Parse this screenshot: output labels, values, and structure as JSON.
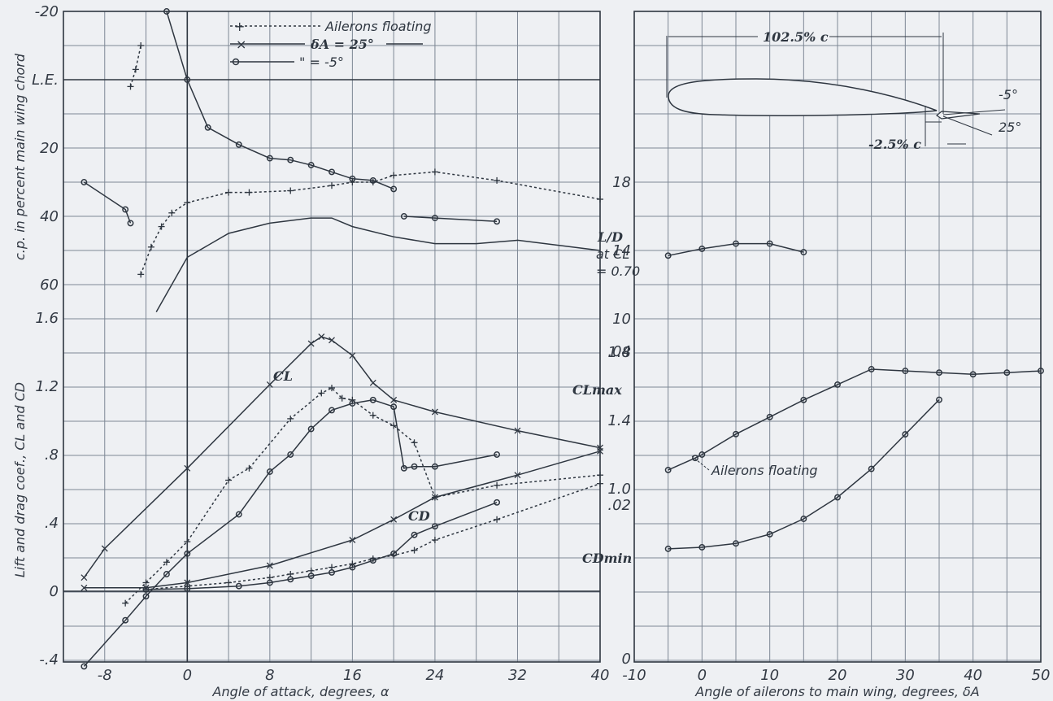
{
  "chart_data": [
    {
      "type": "line",
      "xlabel": "Angle of attack, degrees, α",
      "ylabel_upper": "c.p. in percent main wing chord",
      "ylabel_lower": "Lift and drag coef., CL and CD",
      "xlim": [
        -12,
        40
      ],
      "x_ticks": [
        "-8",
        "0",
        "8",
        "16",
        "24",
        "32",
        "40"
      ],
      "cp_ticks": [
        "-20",
        "L.E.",
        "20",
        "40",
        "60"
      ],
      "coef_ticks": [
        "1.6",
        "1.2",
        ".8",
        ".4",
        "0",
        "-.4"
      ],
      "legend": [
        {
          "key": "floating",
          "marker": "+",
          "style": "dotted",
          "label": "Ailerons floating"
        },
        {
          "key": "d25",
          "marker": "x",
          "style": "solid",
          "label": "δA = 25°"
        },
        {
          "key": "dm5",
          "marker": "o",
          "style": "solid",
          "label": "\" = -5°"
        }
      ],
      "annotations": {
        "cl": "CL",
        "cd": "CD"
      },
      "series": [
        {
          "name": "cp_floating",
          "axis": "cp",
          "marker": "+",
          "style": "dotted",
          "x": [
            -4.5,
            -3.5,
            -2.5,
            -1.5,
            0,
            4,
            6,
            10,
            14,
            16,
            18,
            20,
            24,
            30,
            40
          ],
          "y": [
            57,
            49,
            43,
            39,
            36,
            33,
            33,
            32.5,
            31,
            30,
            30,
            28,
            27,
            29.5,
            35
          ]
        },
        {
          "name": "cp_floating_upper",
          "axis": "cp",
          "marker": "+",
          "style": "dotted",
          "x": [
            -5.5,
            -5,
            -4.5
          ],
          "y": [
            2,
            -3,
            -10
          ]
        },
        {
          "name": "cp_dA_25",
          "axis": "cp",
          "marker": "none",
          "style": "solid",
          "x": [
            -3,
            0,
            4,
            8,
            12,
            14,
            16,
            20,
            24,
            28,
            32,
            40
          ],
          "y": [
            68,
            52,
            45,
            42,
            40.5,
            40.5,
            43,
            46,
            48,
            48,
            47,
            50
          ]
        },
        {
          "name": "cp_dA_m5",
          "axis": "cp",
          "marker": "o",
          "style": "solid",
          "x": [
            -2,
            0,
            2,
            5,
            8,
            10,
            12,
            14,
            16,
            18,
            20
          ],
          "y": [
            -20,
            0,
            14,
            19,
            23,
            23.5,
            25,
            27,
            29,
            29.5,
            32
          ]
        },
        {
          "name": "cp_dA_m5_stalled",
          "axis": "cp",
          "marker": "o",
          "style": "solid",
          "x": [
            21,
            24,
            30
          ],
          "y": [
            40,
            40.5,
            41.5
          ]
        },
        {
          "name": "cp_dA_m5_negative",
          "axis": "cp",
          "marker": "o",
          "style": "solid",
          "x": [
            -10,
            -6,
            -5.5
          ],
          "y": [
            30,
            38,
            42
          ]
        },
        {
          "name": "CL_floating",
          "axis": "coef",
          "marker": "+",
          "style": "dotted",
          "x": [
            -6,
            -4,
            -2,
            0,
            4,
            6,
            10,
            13,
            14,
            15,
            16,
            18,
            20,
            22,
            24,
            30,
            40
          ],
          "y": [
            -0.07,
            0.05,
            0.17,
            0.29,
            0.65,
            0.72,
            1.01,
            1.16,
            1.19,
            1.13,
            1.12,
            1.03,
            0.97,
            0.87,
            0.55,
            0.62,
            0.68
          ]
        },
        {
          "name": "CL_dA_25",
          "axis": "coef",
          "marker": "x",
          "style": "solid",
          "x": [
            -10,
            -8,
            0,
            8,
            12,
            13,
            14,
            16,
            18,
            20,
            24,
            32,
            40
          ],
          "y": [
            0.08,
            0.25,
            0.72,
            1.21,
            1.45,
            1.49,
            1.47,
            1.38,
            1.22,
            1.12,
            1.05,
            0.94,
            0.84
          ]
        },
        {
          "name": "CL_dA_m5",
          "axis": "coef",
          "marker": "o",
          "style": "solid",
          "x": [
            -10,
            -6,
            -4,
            -2,
            0,
            5,
            8,
            10,
            12,
            14,
            16,
            18,
            20,
            21,
            22,
            24,
            30
          ],
          "y": [
            -0.44,
            -0.17,
            -0.03,
            0.1,
            0.22,
            0.45,
            0.7,
            0.8,
            0.95,
            1.06,
            1.1,
            1.12,
            1.08,
            0.72,
            0.73,
            0.73,
            0.8
          ]
        },
        {
          "name": "CD_floating",
          "axis": "coef",
          "marker": "+",
          "style": "dotted",
          "x": [
            -4,
            0,
            4,
            8,
            10,
            12,
            14,
            16,
            18,
            20,
            22,
            24,
            30,
            40
          ],
          "y": [
            0.01,
            0.03,
            0.05,
            0.08,
            0.1,
            0.12,
            0.14,
            0.16,
            0.19,
            0.21,
            0.24,
            0.3,
            0.42,
            0.63
          ]
        },
        {
          "name": "CD_dA_25",
          "axis": "coef",
          "marker": "x",
          "style": "solid",
          "x": [
            -10,
            -4,
            0,
            8,
            16,
            20,
            24,
            32,
            40
          ],
          "y": [
            0.02,
            0.02,
            0.05,
            0.15,
            0.3,
            0.42,
            0.55,
            0.68,
            0.82
          ]
        },
        {
          "name": "CD_dA_m5",
          "axis": "coef",
          "marker": "o",
          "style": "solid",
          "x": [
            -4,
            0,
            5,
            8,
            10,
            12,
            14,
            16,
            18,
            20,
            22,
            24,
            30
          ],
          "y": [
            0.01,
            0.015,
            0.03,
            0.05,
            0.07,
            0.09,
            0.11,
            0.14,
            0.18,
            0.22,
            0.33,
            0.38,
            0.52
          ]
        }
      ]
    },
    {
      "type": "line",
      "xlabel": "Angle of ailerons to main wing, degrees, δA",
      "xlim": [
        -10,
        50
      ],
      "x_ticks": [
        "-10",
        "0",
        "10",
        "20",
        "30",
        "40",
        "50"
      ],
      "ld_ticks": [
        "18",
        "14",
        "10"
      ],
      "clmax_ticks": [
        "1.8",
        "1.4",
        "1.0"
      ],
      "cdmin_ticks": [
        ".04",
        ".02",
        "0"
      ],
      "labels": {
        "ld_line1": "L/D",
        "ld_line2": "at CL",
        "ld_line3": "= 0.70",
        "clmax": "CLmax",
        "cdmin": "CDmin"
      },
      "annotations": {
        "floating": "Ailerons floating",
        "span": "102.5% c",
        "gap": "-2.5% c",
        "deflect_up": "-5°",
        "deflect_down": "25°"
      },
      "series": [
        {
          "name": "L/D at CL=0.70",
          "axis": "ld",
          "marker": "o",
          "x": [
            -5,
            0,
            5,
            10,
            15
          ],
          "y": [
            13.7,
            14.1,
            14.4,
            14.4,
            13.9
          ]
        },
        {
          "name": "CLmax",
          "axis": "clmax",
          "marker": "o",
          "x": [
            -5,
            -1,
            0,
            5,
            10,
            15,
            20,
            25,
            30,
            35,
            40,
            45,
            50
          ],
          "y": [
            1.11,
            1.18,
            1.2,
            1.32,
            1.42,
            1.52,
            1.61,
            1.7,
            1.69,
            1.68,
            1.67,
            1.68,
            1.69
          ]
        },
        {
          "name": "CDmin",
          "axis": "cdmin",
          "marker": "o",
          "x": [
            -5,
            0,
            5,
            10,
            15,
            20,
            25,
            30,
            35
          ],
          "y": [
            0.0143,
            0.0145,
            0.015,
            0.0162,
            0.0182,
            0.021,
            0.0247,
            0.0292,
            0.0337
          ]
        }
      ]
    }
  ]
}
